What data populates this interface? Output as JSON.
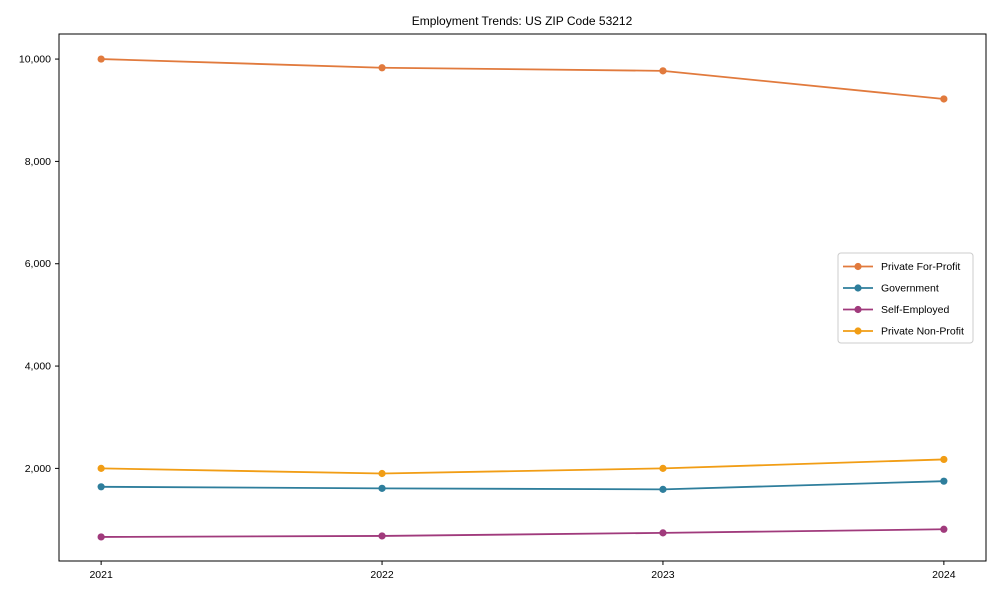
{
  "title": "Employment Trends: US ZIP Code 53212",
  "chart_data": {
    "type": "line",
    "title": "Employment Trends: US ZIP Code 53212",
    "xlabel": "",
    "ylabel": "",
    "x": [
      2021,
      2022,
      2023,
      2024
    ],
    "x_tick_labels": [
      "2021",
      "2022",
      "2023",
      "2024"
    ],
    "y_ticks": [
      2000,
      4000,
      6000,
      8000,
      10000
    ],
    "y_tick_labels": [
      "2,000",
      "4,000",
      "6,000",
      "8,000",
      "10,000"
    ],
    "xlim": [
      2020.85,
      2024.15
    ],
    "ylim": [
      190,
      10490
    ],
    "grid": false,
    "legend_position": "center-right",
    "series": [
      {
        "name": "Private For-Profit",
        "color": "#e17a3d",
        "values": [
          10000,
          9830,
          9770,
          9220
        ]
      },
      {
        "name": "Government",
        "color": "#2e7e9c",
        "values": [
          1640,
          1610,
          1590,
          1750
        ]
      },
      {
        "name": "Self-Employed",
        "color": "#a03a7c",
        "values": [
          660,
          680,
          740,
          810
        ]
      },
      {
        "name": "Private Non-Profit",
        "color": "#f19d15",
        "values": [
          2000,
          1900,
          2000,
          2175
        ]
      }
    ]
  },
  "colors": {
    "axis": "#000000",
    "legend_border": "#cccccc",
    "background": "#ffffff"
  }
}
